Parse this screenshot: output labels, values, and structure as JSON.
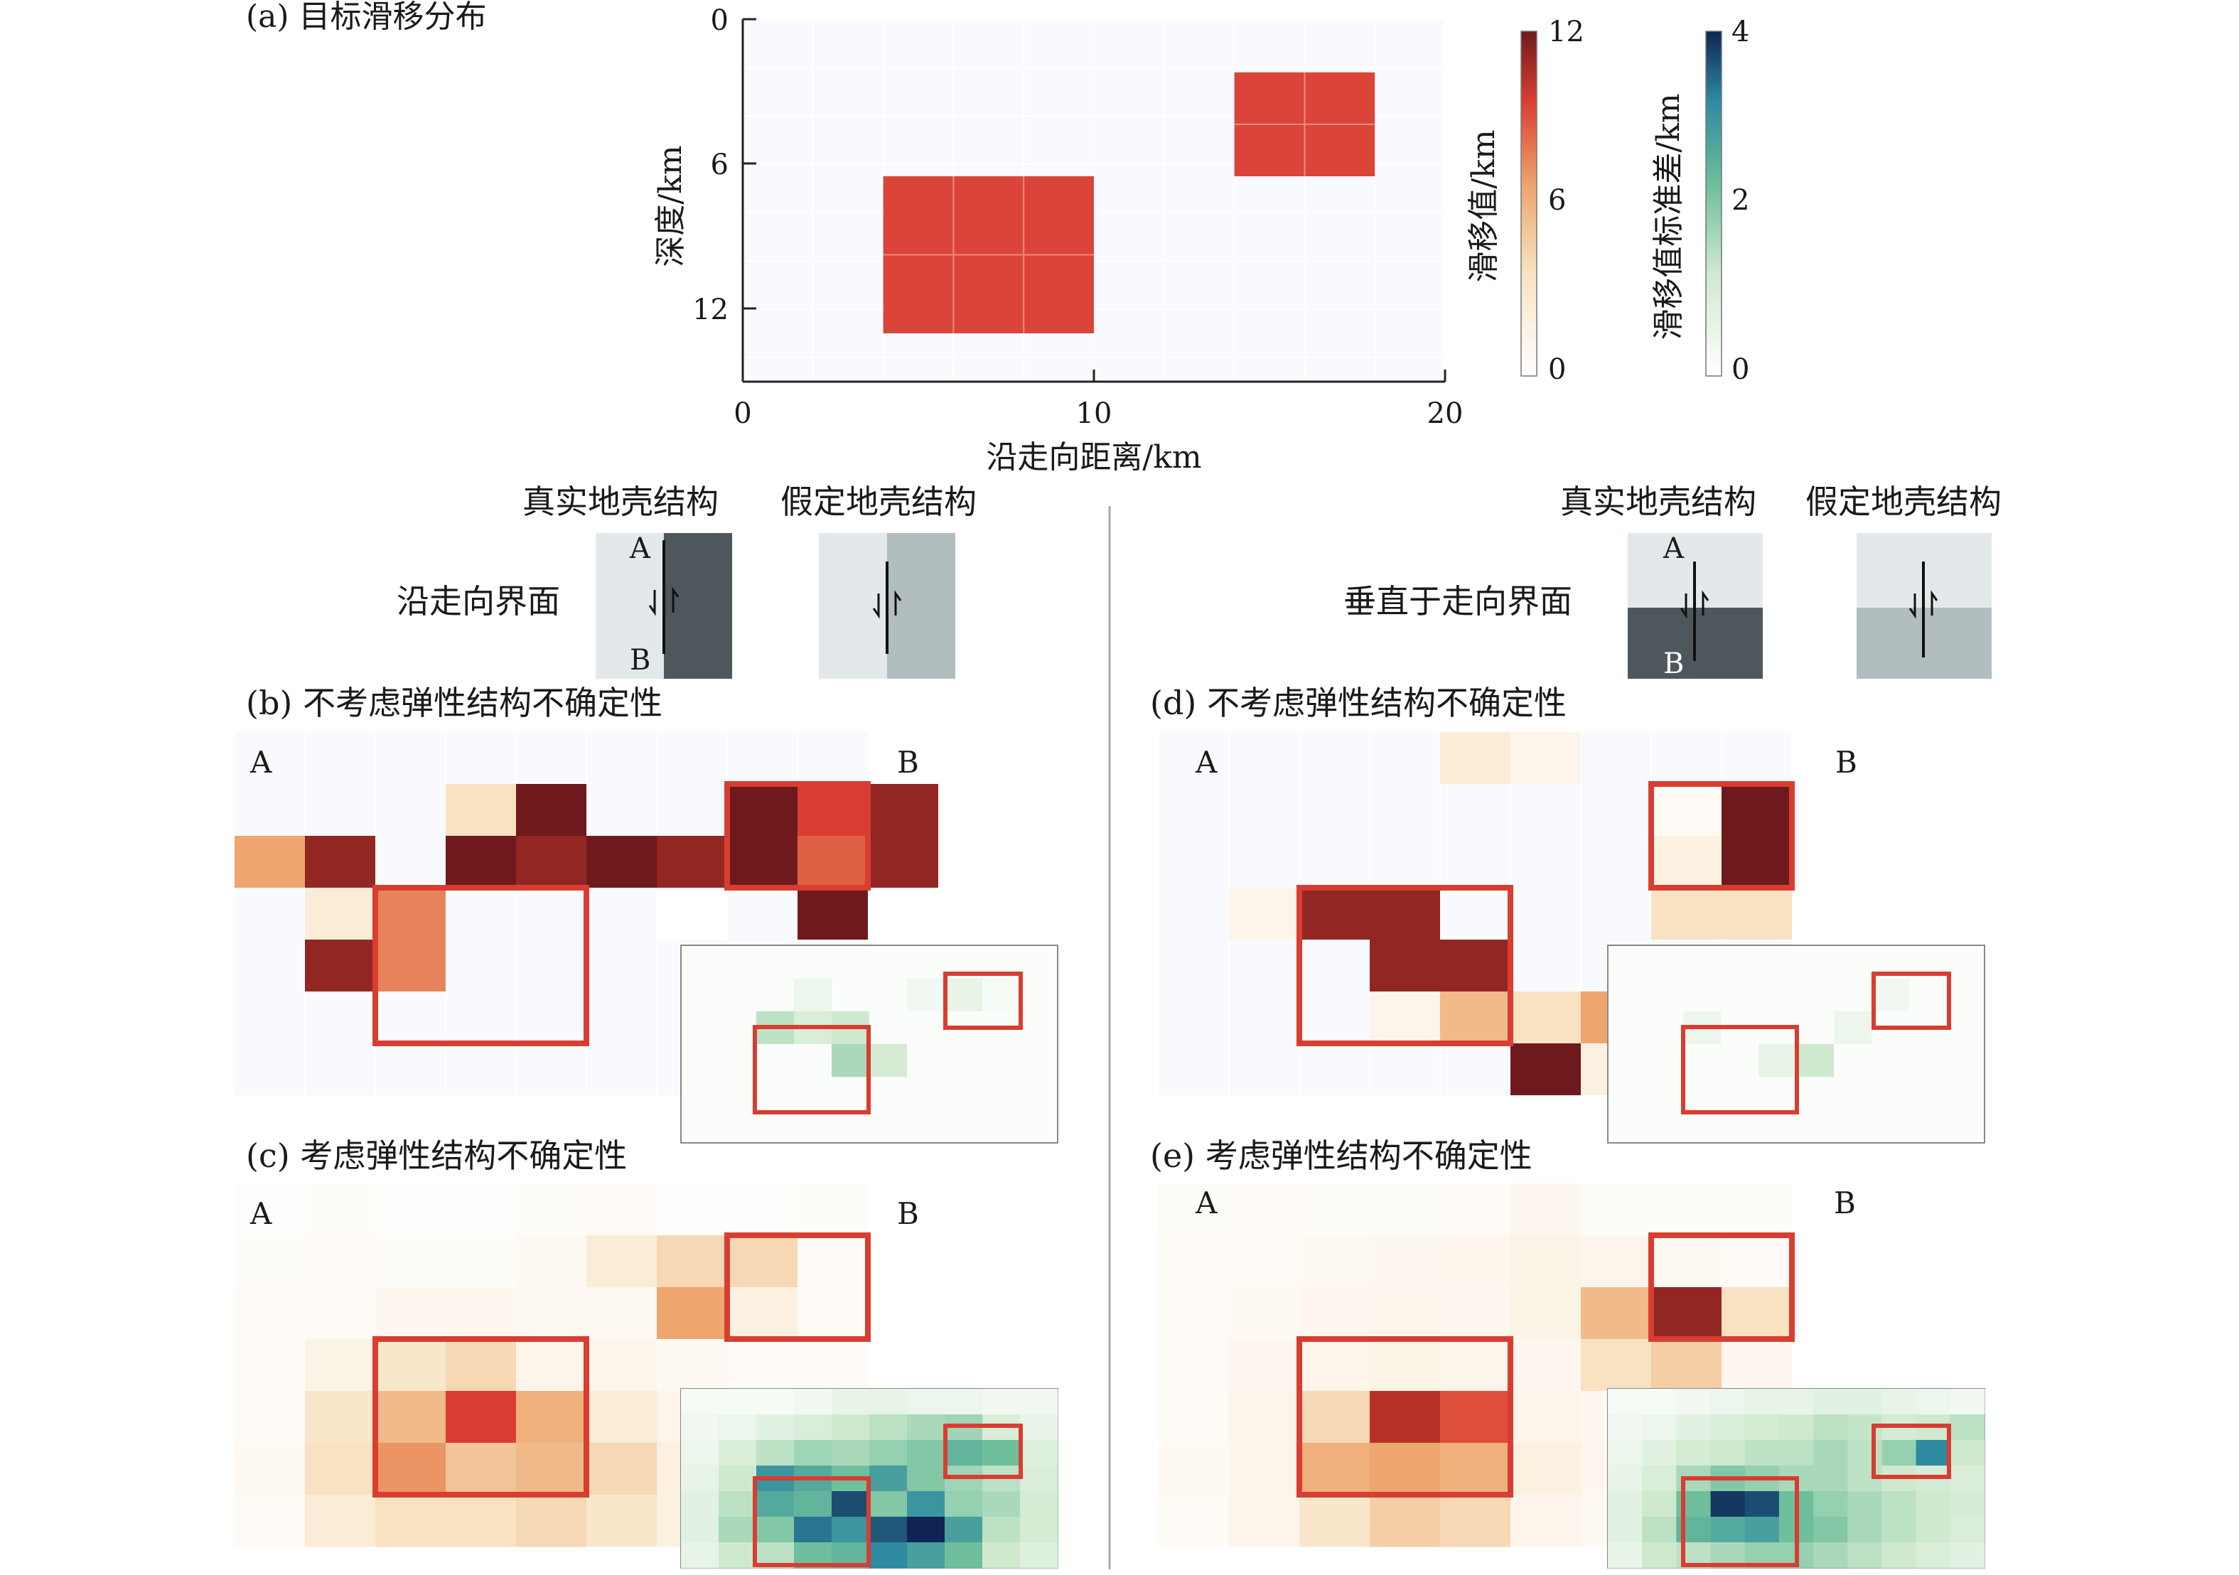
{
  "figure": {
    "panel_a_label": "(a) 目标滑移分布",
    "panel_b_label": "(b) 不考虑弹性结构不确定性",
    "panel_c_label": "(c) 考虑弹性结构不确定性",
    "panel_d_label": "(d) 不考虑弹性结构不确定性",
    "panel_e_label": "(e) 考虑弹性结构不确定性",
    "crust_true": "真实地壳结构",
    "crust_assumed": "假定地壳结构",
    "interface_strike": "沿走向界面",
    "interface_perp": "垂直于走向界面",
    "marker_a": "A",
    "marker_b": "B"
  },
  "chart_data": [
    {
      "id": "a",
      "type": "heatmap",
      "xlabel": "沿走向距离/km",
      "ylabel": "深度/km",
      "xlim": [
        0,
        20
      ],
      "ylim": [
        0,
        15
      ],
      "x_ticks": [
        "0",
        "10",
        "20"
      ],
      "y_ticks": [
        "0",
        "6",
        "12"
      ],
      "patch_size_km": 2,
      "slip_patches": [
        {
          "x": [
            4,
            10
          ],
          "depth": [
            6.5,
            13
          ],
          "slip": 9
        },
        {
          "x": [
            14,
            18
          ],
          "depth": [
            2.2,
            6.5
          ],
          "slip": 9
        }
      ],
      "colorbars": [
        {
          "label": "滑移值/km",
          "min": 0,
          "max": 12,
          "ticks": [
            "0",
            "6",
            "12"
          ],
          "colors": [
            "#ffffff",
            "#f8e2c2",
            "#eea66e",
            "#d93d31",
            "#6e1a1c"
          ]
        },
        {
          "label": "滑移值标准差/km",
          "min": 0,
          "max": 4,
          "ticks": [
            "0",
            "2",
            "4"
          ],
          "colors": [
            "#ffffff",
            "#cfe9cf",
            "#6fbf9c",
            "#2e8aa0",
            "#0f2454"
          ]
        }
      ]
    },
    {
      "id": "b",
      "type": "heatmap",
      "cells": [
        [
          0,
          2,
          6,
          2
        ],
        [
          1,
          2,
          11,
          2
        ],
        [
          1,
          3,
          2,
          2
        ],
        [
          1,
          4,
          11,
          2
        ],
        [
          2,
          3,
          7,
          11
        ],
        [
          2,
          4,
          7,
          8
        ],
        [
          3,
          2,
          12,
          3
        ],
        [
          3,
          1,
          3,
          3
        ],
        [
          4,
          1,
          12,
          12
        ],
        [
          4,
          2,
          11,
          4
        ],
        [
          5,
          2,
          12,
          9
        ],
        [
          6,
          2,
          11,
          9
        ],
        [
          6,
          3,
          0,
          3
        ],
        [
          7,
          1,
          12,
          10
        ],
        [
          7,
          2,
          12,
          11
        ],
        [
          8,
          1,
          9,
          12
        ],
        [
          8,
          2,
          8,
          10
        ],
        [
          8,
          3,
          12,
          11
        ],
        [
          9,
          1,
          11,
          4
        ],
        [
          9,
          2,
          11,
          3
        ]
      ],
      "cell_note": "[col, row, slip, background]",
      "boxes": [
        [
          7,
          1,
          9,
          3
        ],
        [
          2,
          3,
          5,
          6
        ]
      ],
      "std_inset": {
        "cells": [
          [
            2,
            2,
            1.2
          ],
          [
            3,
            2,
            0.8
          ],
          [
            3,
            1,
            0.4
          ],
          [
            4,
            2,
            1.0
          ],
          [
            4,
            3,
            1.4
          ],
          [
            5,
            3,
            0.9
          ],
          [
            6,
            1,
            0.3
          ],
          [
            7,
            1,
            0.5
          ],
          [
            8,
            1,
            0.2
          ]
        ],
        "boxes": [
          [
            4,
            0,
            5,
            1
          ],
          [
            1,
            1,
            3,
            3
          ]
        ]
      }
    },
    {
      "id": "c",
      "type": "heatmap",
      "slip_grid": [
        [
          0.2,
          0.3,
          0.2,
          0.2,
          0.3,
          0.4,
          0.2,
          0.2,
          0.3
        ],
        [
          0.3,
          0.4,
          0.3,
          0.3,
          0.6,
          2.0,
          3.5,
          3.5,
          0.5
        ],
        [
          0.4,
          0.5,
          0.8,
          0.8,
          0.7,
          0.6,
          6.0,
          1.5,
          0.5
        ],
        [
          0.4,
          1.2,
          2.5,
          3.5,
          1.0,
          1.0,
          0.6,
          0.5,
          0.5
        ],
        [
          0.5,
          2.5,
          5.0,
          9.0,
          5.5,
          2.0,
          1.0,
          0.6,
          0.6
        ],
        [
          0.6,
          3.0,
          6.5,
          4.5,
          5.0,
          3.5,
          1.5,
          0.8,
          0.5
        ],
        [
          0.5,
          2.0,
          3.0,
          3.0,
          3.5,
          2.5,
          1.5,
          0.6,
          0.5
        ]
      ],
      "boxes": [
        [
          7,
          1,
          9,
          3
        ],
        [
          2,
          3,
          5,
          6
        ]
      ],
      "std_inset_grid": [
        [
          0.2,
          0.2,
          0.2,
          0.3,
          0.5,
          0.5,
          0.4,
          0.4,
          0.3,
          0.3
        ],
        [
          0.3,
          0.4,
          0.6,
          0.8,
          1.0,
          1.2,
          1.4,
          1.5,
          0.8,
          0.5
        ],
        [
          0.4,
          0.8,
          1.2,
          1.5,
          1.4,
          1.6,
          1.8,
          2.2,
          2.0,
          0.7
        ],
        [
          0.5,
          1.0,
          2.8,
          2.4,
          2.0,
          2.6,
          1.8,
          1.5,
          1.2,
          0.8
        ],
        [
          0.6,
          1.2,
          2.4,
          2.2,
          3.6,
          1.8,
          2.8,
          1.6,
          1.4,
          0.9
        ],
        [
          0.6,
          1.4,
          1.8,
          3.2,
          2.8,
          3.5,
          4.0,
          2.6,
          1.2,
          0.9
        ],
        [
          0.5,
          1.0,
          1.2,
          2.0,
          2.2,
          3.0,
          2.6,
          2.0,
          1.0,
          0.7
        ]
      ]
    },
    {
      "id": "d",
      "type": "heatmap",
      "cells": [
        [
          4,
          0,
          2.0
        ],
        [
          5,
          0,
          1.0
        ],
        [
          7,
          1,
          0.5
        ],
        [
          8,
          1,
          12
        ],
        [
          7,
          2,
          1.5
        ],
        [
          8,
          2,
          12
        ],
        [
          7,
          3,
          3.0
        ],
        [
          8,
          3,
          3.0
        ],
        [
          1,
          3,
          1.0
        ],
        [
          2,
          3,
          11
        ],
        [
          3,
          3,
          11
        ],
        [
          3,
          4,
          11
        ],
        [
          4,
          4,
          11
        ],
        [
          3,
          5,
          1.0
        ],
        [
          4,
          5,
          5.0
        ],
        [
          5,
          5,
          3.0
        ],
        [
          6,
          5,
          6.0
        ],
        [
          5,
          6,
          12
        ],
        [
          6,
          6,
          1.5
        ]
      ],
      "boxes": [
        [
          7,
          1,
          9,
          3
        ],
        [
          2,
          3,
          5,
          6
        ]
      ],
      "std_inset": {
        "cells": [
          [
            2,
            2,
            0.4
          ],
          [
            4,
            3,
            0.5
          ],
          [
            5,
            3,
            1.0
          ],
          [
            6,
            2,
            0.4
          ],
          [
            7,
            1,
            0.3
          ]
        ],
        "boxes": [
          [
            4,
            0,
            5,
            1
          ],
          [
            1,
            1,
            3,
            3
          ]
        ]
      }
    },
    {
      "id": "e",
      "type": "heatmap",
      "slip_grid": [
        [
          0.3,
          0.4,
          0.3,
          0.3,
          0.5,
          0.8,
          0.3,
          0.3,
          0.3
        ],
        [
          0.4,
          0.5,
          0.6,
          0.8,
          0.9,
          1.2,
          1.0,
          0.6,
          0.4
        ],
        [
          0.4,
          0.6,
          0.8,
          1.0,
          0.8,
          1.2,
          5.0,
          11.0,
          3.0
        ],
        [
          0.5,
          0.8,
          1.0,
          1.2,
          1.0,
          0.8,
          3.0,
          4.0,
          0.8
        ],
        [
          0.5,
          1.0,
          3.5,
          10.0,
          8.5,
          1.0,
          0.8,
          0.6,
          0.5
        ],
        [
          0.6,
          1.0,
          5.5,
          6.0,
          5.5,
          1.5,
          0.8,
          0.7,
          0.5
        ],
        [
          0.5,
          1.0,
          2.5,
          4.0,
          3.5,
          1.0,
          0.6,
          0.5,
          0.4
        ]
      ],
      "boxes": [
        [
          7,
          1,
          9,
          3
        ],
        [
          2,
          3,
          5,
          6
        ]
      ],
      "std_inset_grid": [
        [
          0.2,
          0.2,
          0.3,
          0.4,
          0.5,
          0.5,
          0.6,
          0.6,
          0.5,
          0.4,
          0.3
        ],
        [
          0.3,
          0.4,
          0.6,
          0.8,
          0.9,
          1.0,
          1.2,
          1.1,
          0.9,
          1.0,
          1.2
        ],
        [
          0.4,
          0.6,
          0.9,
          1.0,
          1.2,
          1.2,
          1.4,
          1.2,
          1.6,
          3.0,
          1.0
        ],
        [
          0.5,
          0.8,
          1.4,
          1.8,
          1.6,
          1.4,
          1.4,
          1.2,
          1.0,
          0.9,
          0.8
        ],
        [
          0.6,
          1.0,
          2.0,
          3.8,
          3.6,
          2.0,
          1.6,
          1.4,
          1.2,
          1.0,
          0.9
        ],
        [
          0.6,
          1.2,
          2.2,
          2.4,
          2.6,
          2.0,
          1.8,
          1.4,
          1.2,
          1.0,
          0.8
        ],
        [
          0.5,
          1.0,
          1.2,
          1.4,
          1.6,
          1.6,
          1.4,
          1.2,
          1.0,
          0.8,
          0.6
        ]
      ]
    }
  ]
}
